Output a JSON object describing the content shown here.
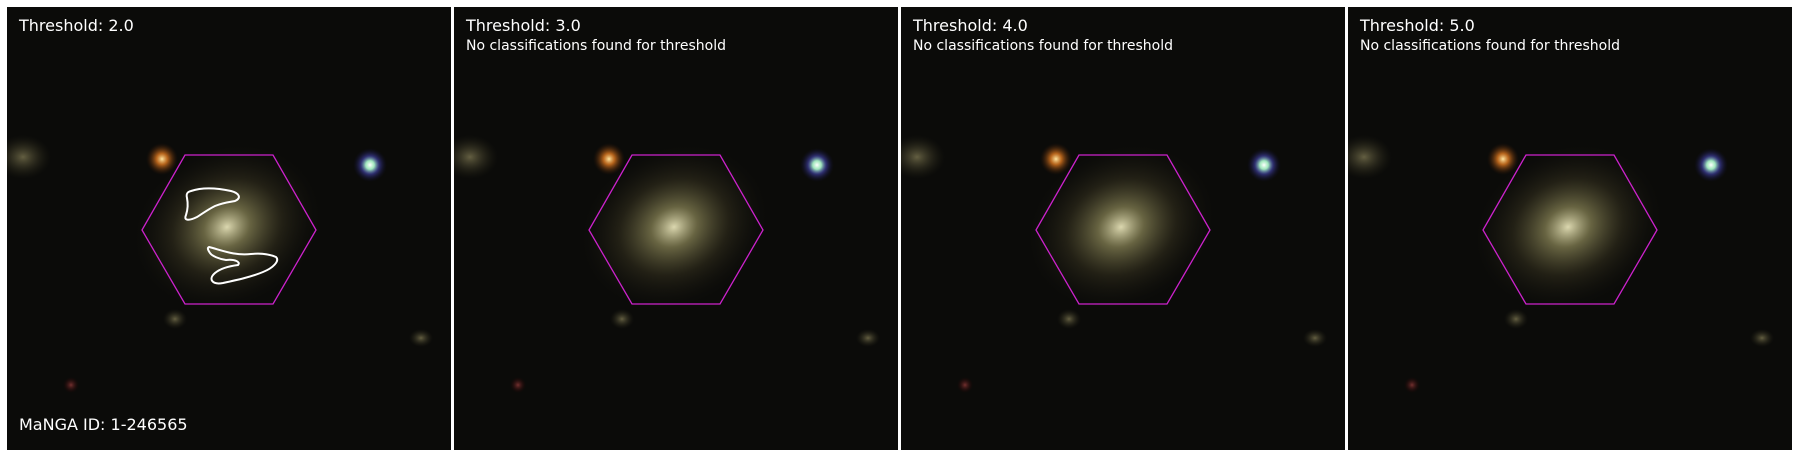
{
  "colors": {
    "background": "#ffffff",
    "sky": "#0a0a08",
    "hexagon": "#cc22cc",
    "contour": "#ffffff",
    "text": "#ffffff"
  },
  "panels": [
    {
      "title": "Threshold: 2.0",
      "note": "",
      "footer": "MaNGA ID: 1-246565",
      "has_contours": true
    },
    {
      "title": "Threshold: 3.0",
      "note": "No classifications found for threshold",
      "footer": "",
      "has_contours": false
    },
    {
      "title": "Threshold: 4.0",
      "note": "No classifications found for threshold",
      "footer": "",
      "has_contours": false
    },
    {
      "title": "Threshold: 5.0",
      "note": "No classifications found for threshold",
      "footer": "",
      "has_contours": false
    }
  ]
}
